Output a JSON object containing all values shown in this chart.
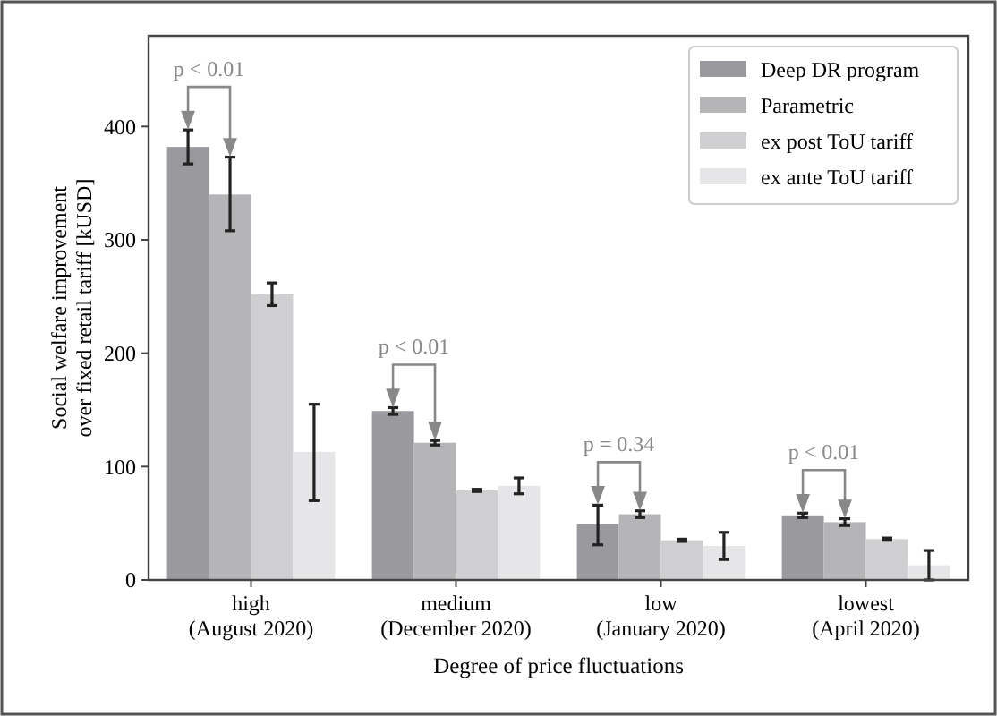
{
  "chart_data": {
    "type": "bar",
    "xlabel": "Degree of price fluctuations",
    "ylabel": "Social welfare improvement\nover fixed retail tariff [kUSD]",
    "categories": [
      "high\n(August 2020)",
      "medium\n(December 2020)",
      "low\n(January 2020)",
      "lowest\n(April 2020)"
    ],
    "series": [
      {
        "name": "Deep DR program",
        "color": "#9a9a9e",
        "values": [
          382,
          149,
          49,
          57
        ],
        "errors": [
          15,
          3,
          [
            31,
            66
          ],
          2
        ]
      },
      {
        "name": "Parametric",
        "color": "#b5b5b8",
        "values": [
          340,
          121,
          58,
          51
        ],
        "errors": [
          [
            308,
            373
          ],
          2,
          3,
          3
        ]
      },
      {
        "name": "ex post ToU tariff",
        "color": "#cfcfd1",
        "values": [
          252,
          79,
          35,
          36
        ],
        "errors": [
          10,
          1,
          1,
          1
        ]
      },
      {
        "name": "ex ante ToU tariff",
        "color": "#e6e6e8",
        "values": [
          113,
          83,
          30,
          13
        ],
        "errors": [
          [
            70,
            155
          ],
          7,
          [
            18,
            42
          ],
          [
            0,
            26
          ]
        ]
      }
    ],
    "ylim": [
      0,
      480
    ],
    "yticks": [
      0,
      100,
      200,
      300,
      400
    ],
    "grid": false,
    "legend": "top right",
    "annotations": [
      "p < 0.01",
      "p < 0.01",
      "p = 0.34",
      "p < 0.01"
    ]
  }
}
